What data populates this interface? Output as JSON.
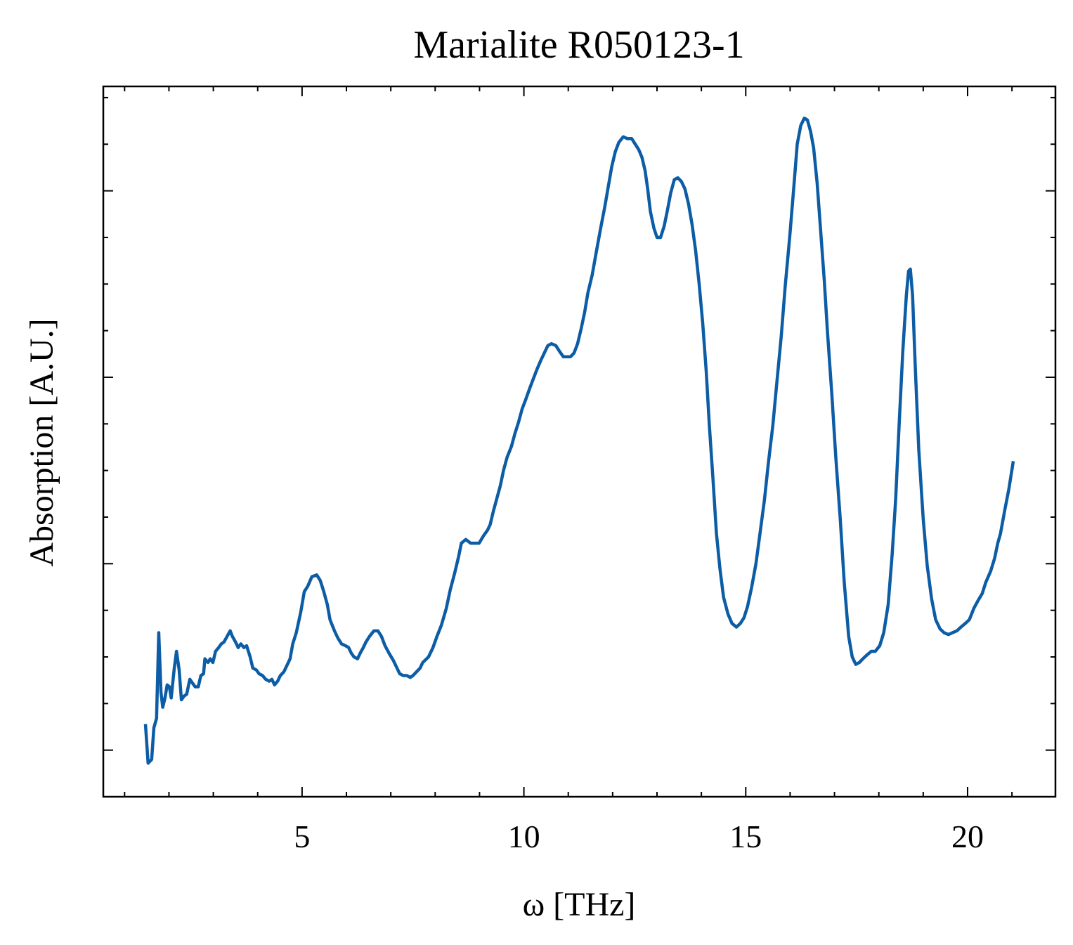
{
  "chart_data": {
    "type": "line",
    "title": "Marialite R050123-1",
    "xlabel": "ω [THz]",
    "ylabel": "Absorption [A.U.]",
    "xlim": [
      0.52,
      21.98
    ],
    "ylim": [
      -0.25,
      3.56
    ],
    "xticks": [
      5,
      10,
      15,
      20
    ],
    "yticks": [
      0,
      1,
      2,
      3
    ],
    "xminorticks": [
      1,
      2,
      3,
      4,
      6,
      7,
      8,
      9,
      11,
      12,
      13,
      14,
      16,
      17,
      18,
      19,
      21
    ],
    "yminorticks": [
      0.25,
      0.5,
      0.75,
      1.25,
      1.5,
      1.75,
      2.25,
      2.5,
      2.75,
      3.25,
      3.5
    ],
    "show_ytick_labels": false,
    "x": [
      1.47,
      1.53,
      1.61,
      1.66,
      1.72,
      1.77,
      1.82,
      1.86,
      1.91,
      1.96,
      2.01,
      2.05,
      2.12,
      2.17,
      2.23,
      2.28,
      2.34,
      2.4,
      2.47,
      2.53,
      2.59,
      2.66,
      2.72,
      2.78,
      2.81,
      2.88,
      2.93,
      2.99,
      3.05,
      3.12,
      3.18,
      3.24,
      3.31,
      3.38,
      3.43,
      3.5,
      3.56,
      3.62,
      3.69,
      3.75,
      3.83,
      3.89,
      3.97,
      4.03,
      4.11,
      4.18,
      4.26,
      4.32,
      4.38,
      4.45,
      4.51,
      4.59,
      4.65,
      4.73,
      4.79,
      4.87,
      4.97,
      5.05,
      5.13,
      5.22,
      5.33,
      5.41,
      5.49,
      5.57,
      5.63,
      5.73,
      5.81,
      5.89,
      5.98,
      6.05,
      6.11,
      6.17,
      6.25,
      6.31,
      6.38,
      6.44,
      6.52,
      6.62,
      6.71,
      6.79,
      6.87,
      6.96,
      7.06,
      7.14,
      7.2,
      7.28,
      7.36,
      7.44,
      7.5,
      7.58,
      7.66,
      7.72,
      7.85,
      7.95,
      8.04,
      8.14,
      8.25,
      8.34,
      8.44,
      8.53,
      8.59,
      8.69,
      8.8,
      8.9,
      8.99,
      9.09,
      9.18,
      9.24,
      9.31,
      9.39,
      9.47,
      9.54,
      9.62,
      9.72,
      9.8,
      9.88,
      9.96,
      10.04,
      10.13,
      10.21,
      10.29,
      10.38,
      10.46,
      10.54,
      10.62,
      10.72,
      10.8,
      10.89,
      10.97,
      11.05,
      11.13,
      11.21,
      11.29,
      11.37,
      11.44,
      11.54,
      11.63,
      11.73,
      11.82,
      11.9,
      11.98,
      12.06,
      12.14,
      12.24,
      12.33,
      12.43,
      12.51,
      12.59,
      12.66,
      12.73,
      12.79,
      12.85,
      12.93,
      13.0,
      13.08,
      13.16,
      13.23,
      13.31,
      13.39,
      13.47,
      13.55,
      13.63,
      13.71,
      13.79,
      13.87,
      13.95,
      14.03,
      14.11,
      14.18,
      14.26,
      14.34,
      14.42,
      14.5,
      14.6,
      14.69,
      14.79,
      14.88,
      14.96,
      15.04,
      15.13,
      15.23,
      15.32,
      15.42,
      15.51,
      15.61,
      15.7,
      15.8,
      15.89,
      15.99,
      16.08,
      16.16,
      16.24,
      16.32,
      16.39,
      16.46,
      16.53,
      16.61,
      16.69,
      16.77,
      16.84,
      16.94,
      17.03,
      17.13,
      17.22,
      17.32,
      17.4,
      17.48,
      17.56,
      17.64,
      17.73,
      17.83,
      17.92,
      18.02,
      18.11,
      18.21,
      18.3,
      18.38,
      18.46,
      18.54,
      18.62,
      18.67,
      18.71,
      18.76,
      18.82,
      18.9,
      19.0,
      19.09,
      19.19,
      19.28,
      19.38,
      19.47,
      19.57,
      19.66,
      19.76,
      19.85,
      19.95,
      20.04,
      20.14,
      20.23,
      20.33,
      20.41,
      20.52,
      20.61,
      20.68,
      20.74,
      20.84,
      20.93,
      21.03
    ],
    "series": [
      {
        "color": "#0c5da5",
        "values": [
          0.14,
          -0.07,
          -0.05,
          0.12,
          0.17,
          0.63,
          0.31,
          0.23,
          0.28,
          0.35,
          0.34,
          0.28,
          0.44,
          0.53,
          0.43,
          0.27,
          0.29,
          0.3,
          0.38,
          0.36,
          0.34,
          0.34,
          0.4,
          0.41,
          0.49,
          0.47,
          0.49,
          0.47,
          0.53,
          0.55,
          0.57,
          0.58,
          0.61,
          0.64,
          0.61,
          0.58,
          0.55,
          0.57,
          0.55,
          0.56,
          0.5,
          0.44,
          0.43,
          0.41,
          0.4,
          0.38,
          0.37,
          0.38,
          0.35,
          0.37,
          0.4,
          0.42,
          0.45,
          0.49,
          0.57,
          0.63,
          0.74,
          0.85,
          0.88,
          0.93,
          0.94,
          0.91,
          0.85,
          0.78,
          0.7,
          0.64,
          0.6,
          0.57,
          0.56,
          0.55,
          0.52,
          0.5,
          0.49,
          0.52,
          0.55,
          0.58,
          0.61,
          0.64,
          0.64,
          0.61,
          0.56,
          0.52,
          0.48,
          0.44,
          0.41,
          0.4,
          0.4,
          0.39,
          0.4,
          0.42,
          0.44,
          0.47,
          0.5,
          0.55,
          0.61,
          0.67,
          0.76,
          0.86,
          0.95,
          1.04,
          1.11,
          1.13,
          1.11,
          1.11,
          1.11,
          1.15,
          1.18,
          1.21,
          1.28,
          1.35,
          1.42,
          1.5,
          1.57,
          1.63,
          1.7,
          1.76,
          1.83,
          1.88,
          1.94,
          1.99,
          2.04,
          2.09,
          2.13,
          2.17,
          2.18,
          2.17,
          2.14,
          2.11,
          2.11,
          2.11,
          2.13,
          2.18,
          2.26,
          2.35,
          2.45,
          2.55,
          2.67,
          2.8,
          2.91,
          3.02,
          3.13,
          3.21,
          3.26,
          3.29,
          3.28,
          3.28,
          3.25,
          3.22,
          3.18,
          3.11,
          3.01,
          2.89,
          2.8,
          2.75,
          2.75,
          2.81,
          2.89,
          2.99,
          3.06,
          3.07,
          3.05,
          3.01,
          2.93,
          2.82,
          2.68,
          2.5,
          2.29,
          2.03,
          1.74,
          1.46,
          1.16,
          0.97,
          0.82,
          0.73,
          0.68,
          0.66,
          0.68,
          0.71,
          0.77,
          0.87,
          1.0,
          1.16,
          1.34,
          1.54,
          1.74,
          1.97,
          2.22,
          2.49,
          2.75,
          3.01,
          3.25,
          3.35,
          3.39,
          3.38,
          3.32,
          3.23,
          3.04,
          2.78,
          2.52,
          2.25,
          1.91,
          1.57,
          1.24,
          0.9,
          0.61,
          0.5,
          0.46,
          0.47,
          0.49,
          0.51,
          0.53,
          0.53,
          0.56,
          0.63,
          0.78,
          1.05,
          1.35,
          1.76,
          2.14,
          2.44,
          2.57,
          2.58,
          2.44,
          2.06,
          1.61,
          1.24,
          0.99,
          0.81,
          0.7,
          0.65,
          0.63,
          0.62,
          0.63,
          0.64,
          0.66,
          0.68,
          0.7,
          0.76,
          0.8,
          0.84,
          0.9,
          0.96,
          1.03,
          1.11,
          1.16,
          1.29,
          1.4,
          1.55
        ]
      }
    ]
  }
}
